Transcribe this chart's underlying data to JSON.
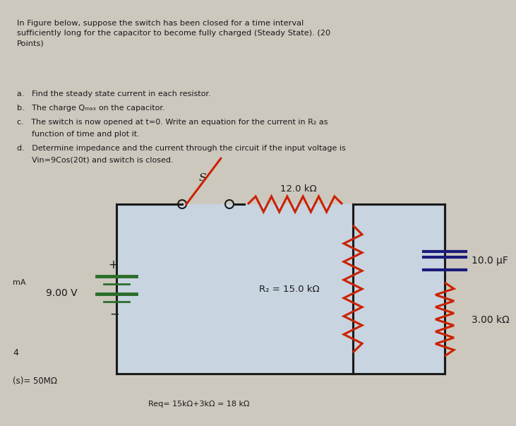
{
  "bg_color": "#ccc8be",
  "text_color": "#1a1a1a",
  "title_lines": [
    "In Figure below, suppose the switch has been closed for a time interval",
    "sufficiently long for the capacitor to become fully charged (Steady State). (20",
    "Points)"
  ],
  "item_a": "a.   Find the steady state current in each resistor.",
  "item_b": "b.   The charge Qₘₐₓ on the capacitor.",
  "item_c1": "c.   The switch is now opened at t=0. Write an equation for the current in R₂ as",
  "item_c2": "      function of time and plot it.",
  "item_d1": "d.   Determine impedance and the current through the circuit if the input voltage is",
  "item_d2": "      Vin=9Cos(20t) and switch is closed.",
  "voltage_label": "9.00 V",
  "R1_label": "12.0 kΩ",
  "R2_label": "R₂ = 15.0 kΩ",
  "R3_label": "3.00 kΩ",
  "C_label": "10.0 μF",
  "switch_label": "S",
  "note1": "mA",
  "note2": "4",
  "note3": "(s)= 50MΩ",
  "note4": "Req= 15kΩ+3kΩ = 18 kΩ",
  "wire_color": "#1a1a1a",
  "red_color": "#cc2200",
  "green_color": "#2a6e2a",
  "blue_color": "#1a1a7a",
  "bg_inner": "#c8d4e0"
}
